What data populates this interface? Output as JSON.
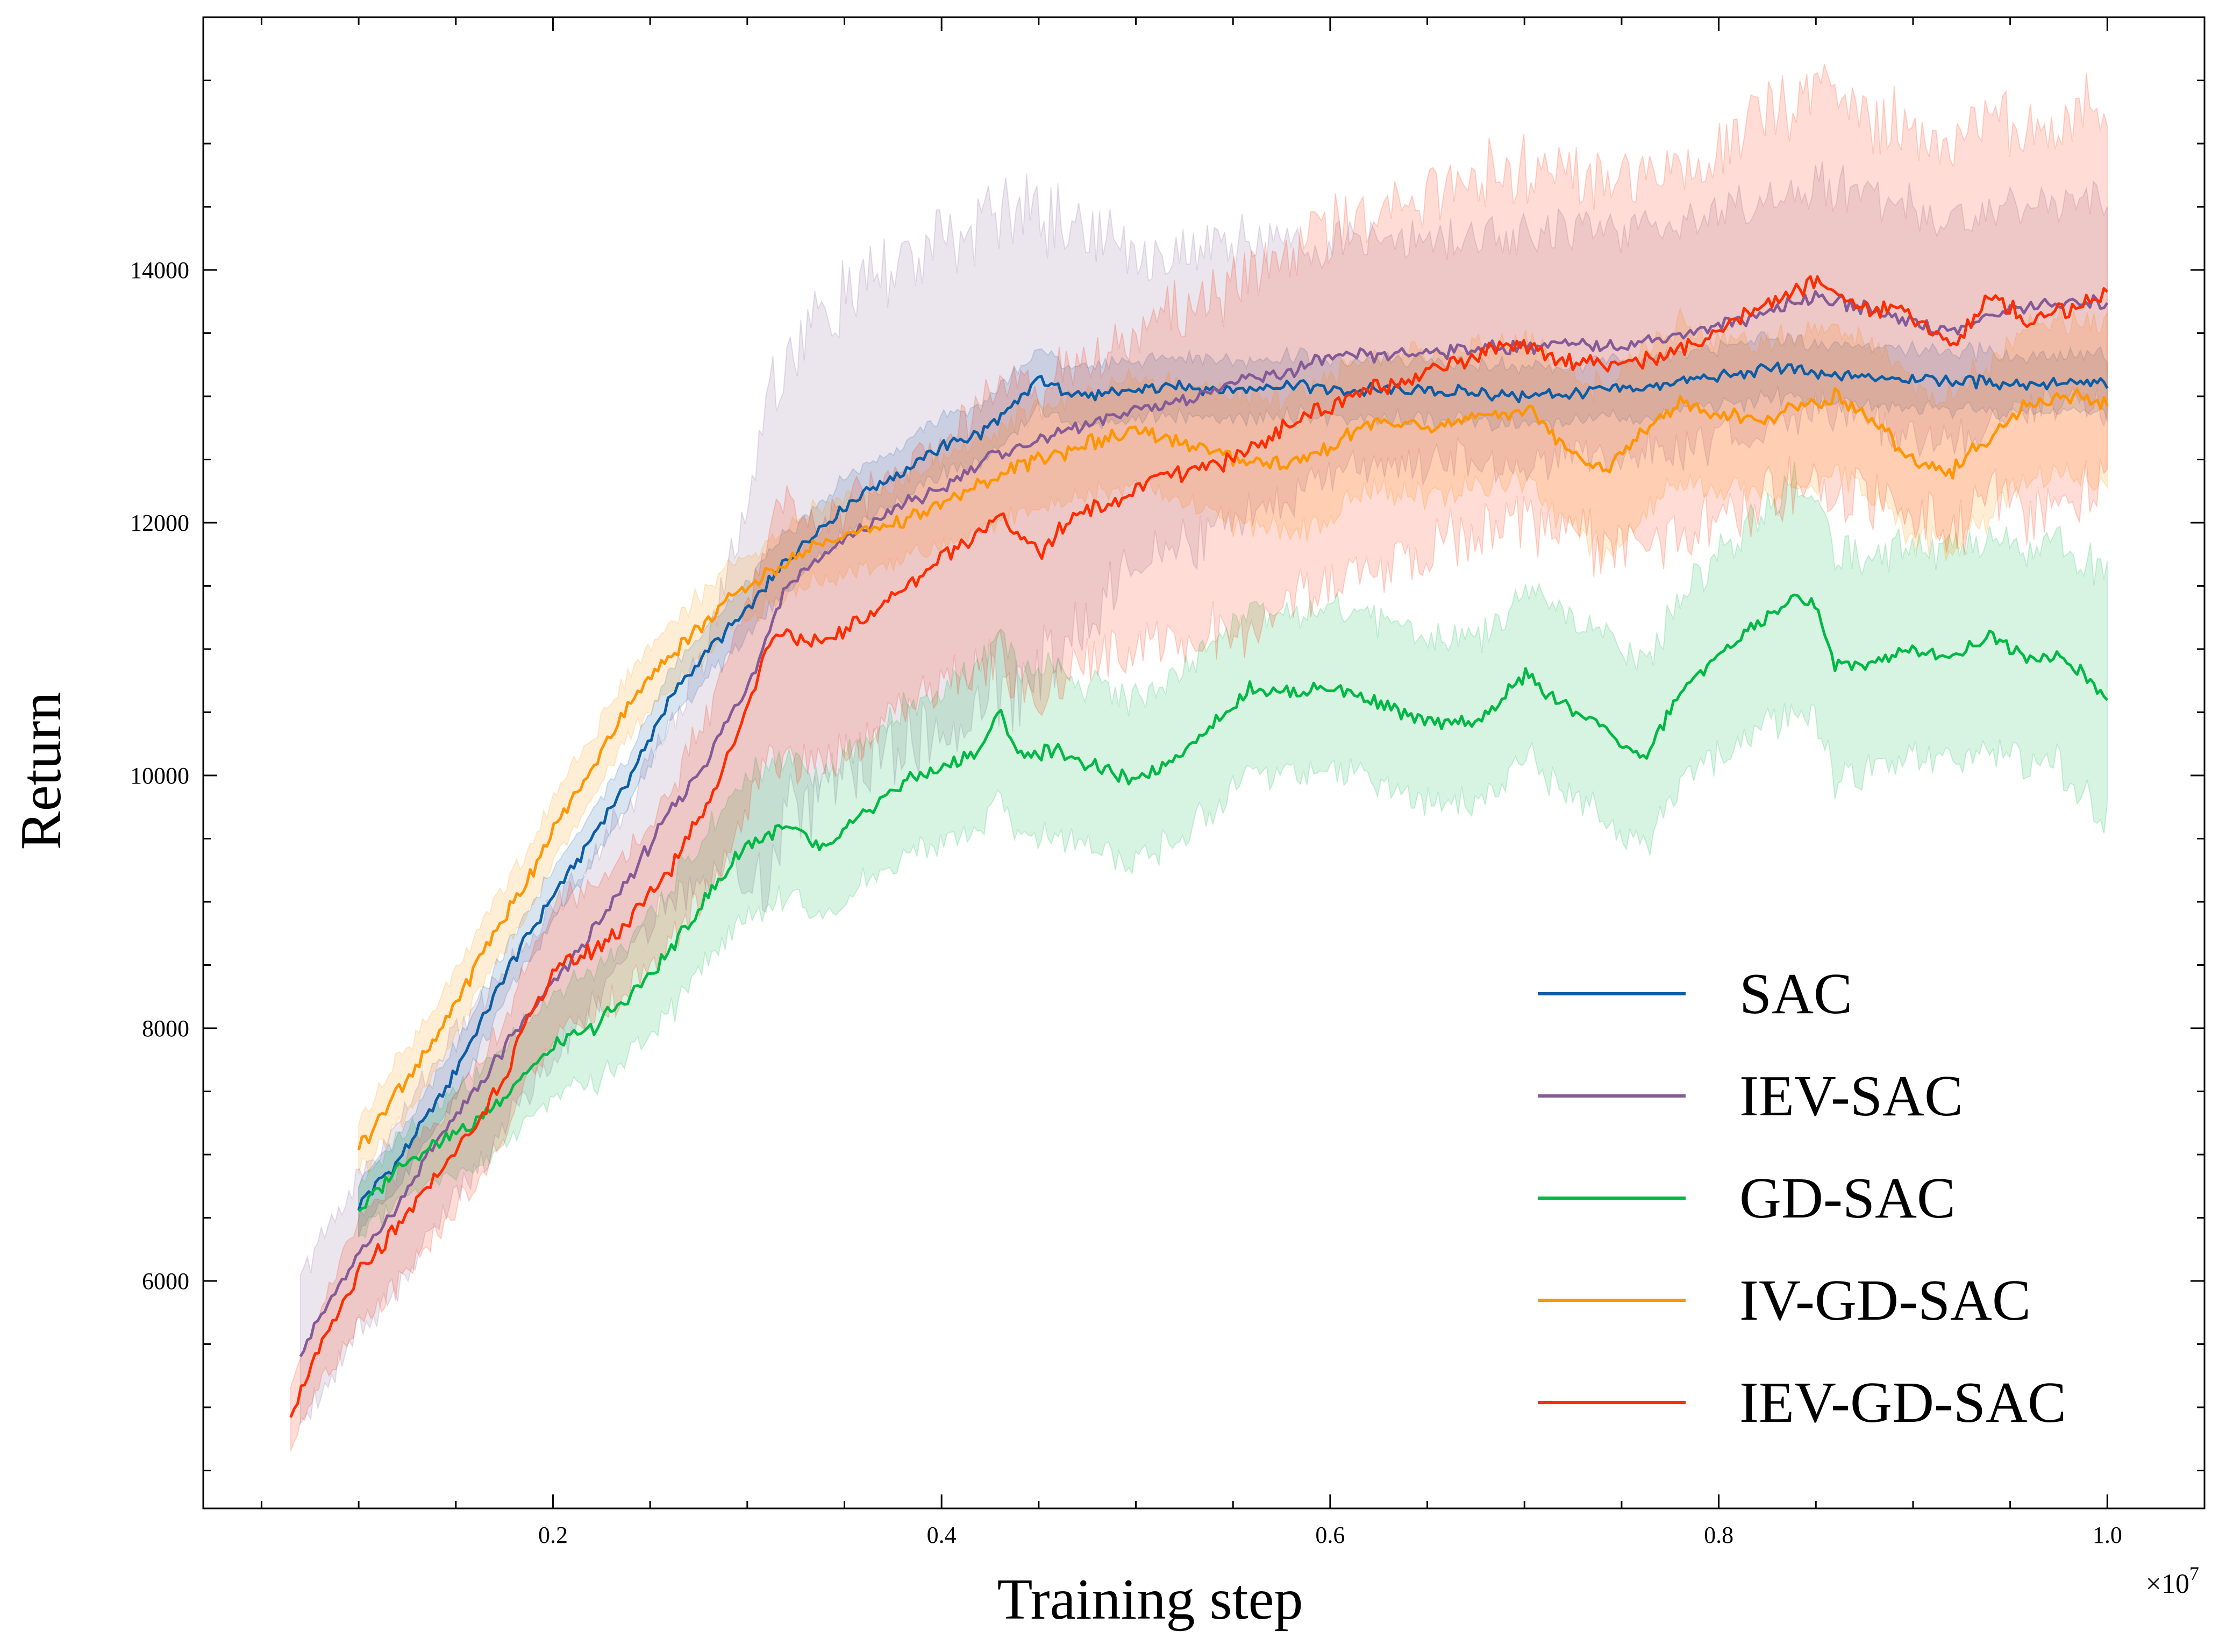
{
  "chart_data": {
    "type": "line",
    "title": "",
    "xlabel": "Training step",
    "ylabel": "Return",
    "x_offset_label": "×10",
    "x_offset_exp": "7",
    "xlim": [
      0.02,
      1.05
    ],
    "ylim": [
      4200,
      16000
    ],
    "xticks": [
      0.2,
      0.4,
      0.6,
      0.8,
      1.0
    ],
    "xtick_labels": [
      "0.2",
      "0.4",
      "0.6",
      "0.8",
      "1.0"
    ],
    "yticks": [
      6000,
      8000,
      10000,
      12000,
      14000
    ],
    "ytick_labels": [
      "6000",
      "8000",
      "10000",
      "12000",
      "14000"
    ],
    "grid": false,
    "legend_position": "bottom-right",
    "series": [
      {
        "name": "SAC",
        "color": "#0c5da5",
        "x": [
          0.1,
          0.12,
          0.14,
          0.16,
          0.18,
          0.2,
          0.22,
          0.24,
          0.26,
          0.28,
          0.3,
          0.32,
          0.34,
          0.36,
          0.38,
          0.4,
          0.42,
          0.44,
          0.45,
          0.46,
          0.48,
          0.5,
          0.52,
          0.55,
          0.58,
          0.6,
          0.65,
          0.7,
          0.75,
          0.8,
          0.83,
          0.86,
          0.9,
          0.95,
          1.0
        ],
        "y": [
          6600,
          6950,
          7400,
          7950,
          8550,
          9050,
          9500,
          10000,
          10600,
          11000,
          11300,
          11700,
          12000,
          12250,
          12400,
          12600,
          12700,
          12950,
          13150,
          13050,
          13000,
          13050,
          13080,
          13050,
          13100,
          13050,
          13050,
          13000,
          13050,
          13150,
          13230,
          13150,
          13150,
          13100,
          13100
        ],
        "band": [
          200,
          200,
          200,
          200,
          200,
          200,
          200,
          200,
          200,
          200,
          220,
          220,
          220,
          220,
          220,
          220,
          230,
          230,
          230,
          230,
          230,
          230,
          230,
          230,
          230,
          230,
          230,
          230,
          230,
          230,
          230,
          230,
          230,
          230,
          230
        ]
      },
      {
        "name": "IEV-SAC",
        "color": "#845b97",
        "x": [
          0.07,
          0.1,
          0.12,
          0.14,
          0.16,
          0.18,
          0.2,
          0.22,
          0.24,
          0.26,
          0.28,
          0.3,
          0.31,
          0.32,
          0.34,
          0.36,
          0.38,
          0.4,
          0.42,
          0.44,
          0.46,
          0.48,
          0.5,
          0.52,
          0.55,
          0.58,
          0.6,
          0.65,
          0.7,
          0.75,
          0.8,
          0.85,
          0.9,
          0.92,
          0.95,
          1.0
        ],
        "y": [
          5450,
          6200,
          6600,
          7100,
          7500,
          7950,
          8350,
          8750,
          9200,
          9700,
          10150,
          10700,
          11100,
          11500,
          11750,
          11950,
          12150,
          12250,
          12500,
          12600,
          12700,
          12800,
          12900,
          12950,
          13100,
          13200,
          13300,
          13350,
          13400,
          13400,
          13550,
          13800,
          13600,
          13500,
          13700,
          13750
        ],
        "band": [
          600,
          600,
          650,
          650,
          650,
          600,
          600,
          600,
          600,
          700,
          900,
          1500,
          1900,
          1800,
          1900,
          1900,
          1900,
          1900,
          1900,
          1900,
          1700,
          1500,
          1200,
          1200,
          1100,
          1000,
          900,
          900,
          900,
          900,
          900,
          900,
          900,
          900,
          800,
          800
        ]
      },
      {
        "name": "GD-SAC",
        "color": "#00b945",
        "x": [
          0.1,
          0.12,
          0.14,
          0.16,
          0.18,
          0.2,
          0.22,
          0.24,
          0.26,
          0.28,
          0.3,
          0.32,
          0.34,
          0.36,
          0.38,
          0.4,
          0.42,
          0.43,
          0.44,
          0.46,
          0.48,
          0.5,
          0.52,
          0.54,
          0.56,
          0.58,
          0.6,
          0.62,
          0.65,
          0.68,
          0.7,
          0.72,
          0.74,
          0.76,
          0.78,
          0.8,
          0.82,
          0.84,
          0.85,
          0.86,
          0.88,
          0.9,
          0.92,
          0.94,
          0.96,
          0.98,
          1.0
        ],
        "y": [
          6550,
          6900,
          7100,
          7250,
          7550,
          7850,
          8000,
          8250,
          8600,
          9050,
          9450,
          9600,
          9400,
          9700,
          9950,
          10050,
          10200,
          10500,
          10150,
          10200,
          10050,
          9950,
          10150,
          10400,
          10700,
          10650,
          10700,
          10600,
          10400,
          10450,
          10800,
          10550,
          10400,
          10100,
          10650,
          10950,
          11200,
          11400,
          11350,
          10850,
          10900,
          11000,
          10950,
          11100,
          10950,
          10900,
          10600
        ],
        "band": [
          200,
          250,
          300,
          350,
          400,
          400,
          450,
          450,
          500,
          500,
          550,
          550,
          550,
          550,
          600,
          600,
          650,
          700,
          650,
          650,
          650,
          650,
          650,
          650,
          650,
          650,
          650,
          650,
          650,
          650,
          650,
          700,
          700,
          750,
          750,
          800,
          850,
          900,
          900,
          900,
          850,
          850,
          850,
          850,
          850,
          900,
          950
        ]
      },
      {
        "name": "IV-GD-SAC",
        "color": "#ff9500",
        "x": [
          0.1,
          0.12,
          0.14,
          0.16,
          0.18,
          0.2,
          0.22,
          0.24,
          0.26,
          0.28,
          0.3,
          0.32,
          0.34,
          0.36,
          0.38,
          0.4,
          0.42,
          0.44,
          0.46,
          0.48,
          0.5,
          0.52,
          0.55,
          0.58,
          0.6,
          0.62,
          0.65,
          0.68,
          0.7,
          0.72,
          0.74,
          0.76,
          0.78,
          0.8,
          0.82,
          0.84,
          0.86,
          0.88,
          0.9,
          0.92,
          0.94,
          0.96,
          0.98,
          1.0
        ],
        "y": [
          7050,
          7500,
          7900,
          8500,
          9000,
          9550,
          10050,
          10600,
          10950,
          11250,
          11500,
          11700,
          11850,
          11950,
          12000,
          12150,
          12300,
          12450,
          12550,
          12650,
          12700,
          12650,
          12500,
          12450,
          12600,
          12800,
          12750,
          12850,
          12900,
          12650,
          12400,
          12700,
          12950,
          12850,
          12800,
          12900,
          13000,
          12800,
          12500,
          12400,
          12700,
          12950,
          13000,
          12950
        ],
        "band": [
          200,
          250,
          250,
          250,
          250,
          250,
          250,
          250,
          250,
          250,
          250,
          250,
          300,
          300,
          300,
          350,
          350,
          400,
          400,
          400,
          400,
          450,
          500,
          550,
          550,
          550,
          550,
          550,
          550,
          600,
          650,
          650,
          600,
          600,
          600,
          600,
          600,
          600,
          600,
          600,
          600,
          600,
          600,
          650
        ]
      },
      {
        "name": "IEV-GD-SAC",
        "color": "#ff2c00",
        "x": [
          0.065,
          0.08,
          0.1,
          0.12,
          0.14,
          0.16,
          0.18,
          0.2,
          0.22,
          0.24,
          0.26,
          0.28,
          0.29,
          0.3,
          0.31,
          0.32,
          0.33,
          0.35,
          0.37,
          0.39,
          0.41,
          0.43,
          0.45,
          0.47,
          0.49,
          0.51,
          0.53,
          0.55,
          0.58,
          0.6,
          0.62,
          0.65,
          0.68,
          0.7,
          0.72,
          0.75,
          0.78,
          0.8,
          0.82,
          0.84,
          0.85,
          0.86,
          0.88,
          0.9,
          0.92,
          0.94,
          0.96,
          0.98,
          1.0
        ],
        "y": [
          4950,
          5450,
          6050,
          6400,
          6850,
          7200,
          7800,
          8450,
          8600,
          8850,
          9250,
          9800,
          10150,
          10550,
          11000,
          11200,
          11000,
          11150,
          11350,
          11600,
          11850,
          12050,
          11750,
          12100,
          12150,
          12350,
          12400,
          12500,
          12800,
          12900,
          13050,
          13200,
          13350,
          13400,
          13300,
          13250,
          13350,
          13500,
          13700,
          13850,
          13900,
          13800,
          13700,
          13650,
          13400,
          13800,
          13600,
          13700,
          13800
        ],
        "band": [
          250,
          300,
          400,
          450,
          450,
          450,
          450,
          500,
          500,
          550,
          600,
          700,
          750,
          800,
          900,
          1000,
          950,
          950,
          950,
          950,
          1000,
          1100,
          1200,
          1200,
          1200,
          1300,
          1300,
          1400,
          1400,
          1400,
          1400,
          1400,
          1400,
          1400,
          1450,
          1450,
          1450,
          1450,
          1500,
          1500,
          1500,
          1500,
          1500,
          1500,
          1500,
          1500,
          1500,
          1500,
          1500
        ]
      }
    ]
  }
}
